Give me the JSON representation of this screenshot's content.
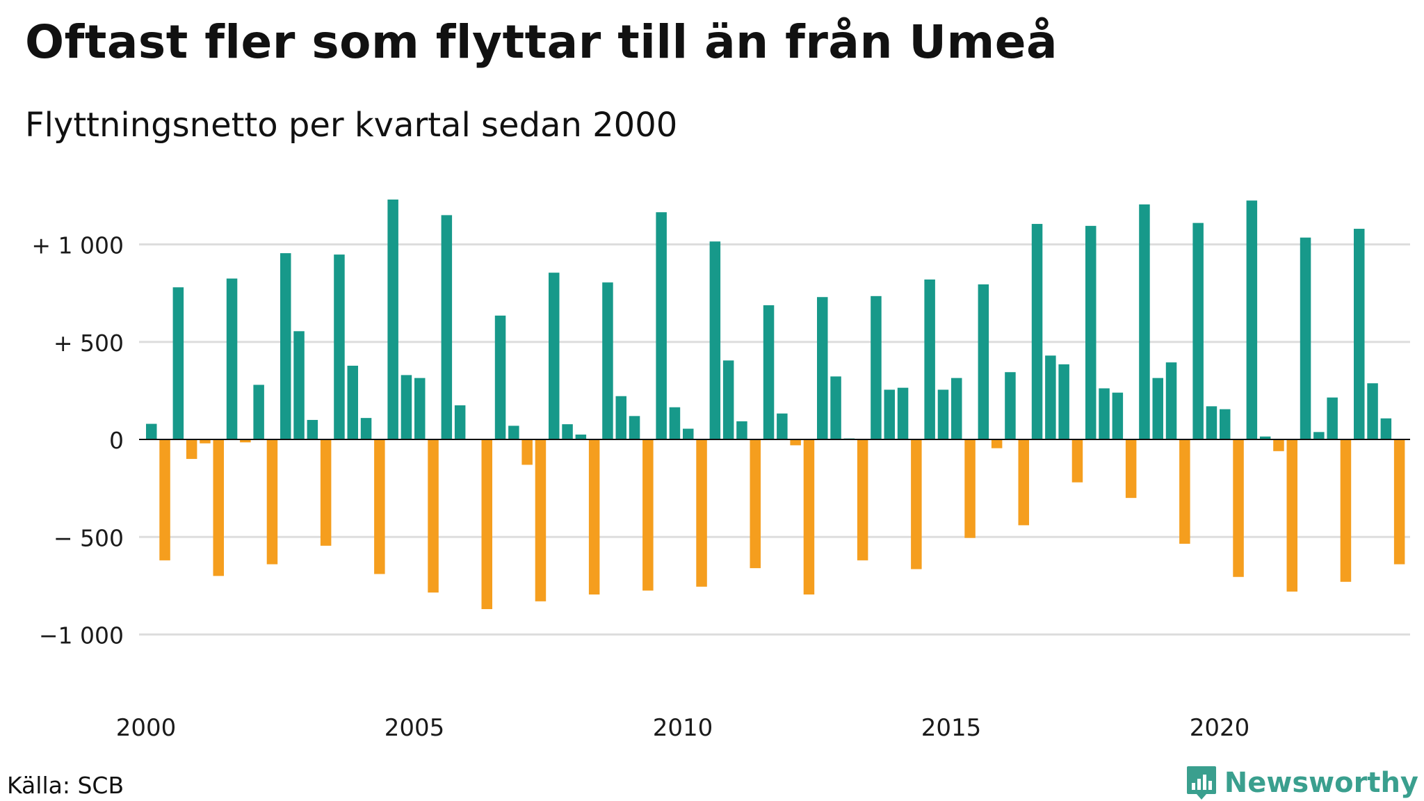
{
  "title": "Oftast fler som flyttar till än från Umeå",
  "subtitle": "Flyttningsnetto per kvartal sedan 2000",
  "source": "Källa: SCB",
  "logo": {
    "text": "Newsworthy",
    "icon": "newsworthy-logo-icon",
    "color": "#3a9f8e"
  },
  "colors": {
    "positive": "#17998a",
    "negative": "#f59e1e",
    "grid": "#dddddd",
    "zero": "#111111"
  },
  "chart_data": {
    "type": "bar",
    "title": "Oftast fler som flyttar till än från Umeå",
    "subtitle": "Flyttningsnetto per kvartal sedan 2000",
    "ylim": [
      -1200,
      1250
    ],
    "yticks": [
      {
        "value": 1000,
        "label": "+ 1 000"
      },
      {
        "value": 500,
        "label": "+   500"
      },
      {
        "value": 0,
        "label": "0"
      },
      {
        "value": -500,
        "label": "−  500"
      },
      {
        "value": -1000,
        "label": "−1 000"
      }
    ],
    "xticks": [
      {
        "value": 2000,
        "label": "2000"
      },
      {
        "value": 2005,
        "label": "2005"
      },
      {
        "value": 2010,
        "label": "2010"
      },
      {
        "value": 2015,
        "label": "2015"
      },
      {
        "value": 2020,
        "label": "2020"
      }
    ],
    "grid": true,
    "start_year": 2000,
    "values": [
      80,
      -620,
      780,
      -100,
      -20,
      -700,
      825,
      -15,
      280,
      -640,
      955,
      555,
      100,
      -545,
      948,
      378,
      110,
      -690,
      1230,
      330,
      315,
      -785,
      1150,
      175,
      0,
      -870,
      635,
      70,
      -130,
      -830,
      855,
      78,
      25,
      -795,
      805,
      222,
      120,
      -775,
      1165,
      165,
      55,
      -755,
      1015,
      405,
      93,
      -660,
      688,
      133,
      -30,
      -795,
      730,
      323,
      5,
      -620,
      735,
      255,
      265,
      -665,
      820,
      255,
      315,
      -505,
      795,
      -45,
      345,
      -440,
      1105,
      430,
      385,
      -220,
      1095,
      262,
      240,
      -300,
      1205,
      315,
      395,
      -535,
      1110,
      170,
      155,
      -705,
      1225,
      15,
      -60,
      -780,
      1035,
      38,
      215,
      -730,
      1080,
      288,
      108,
      -640
    ]
  }
}
